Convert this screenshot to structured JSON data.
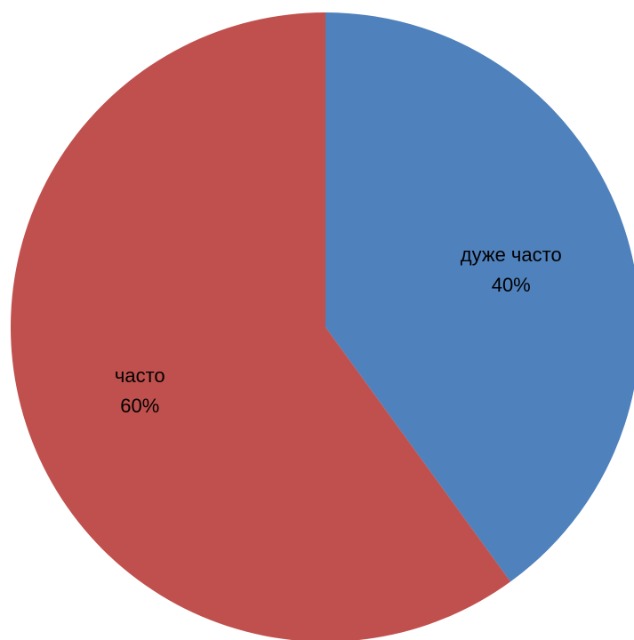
{
  "chart_data": {
    "type": "pie",
    "title": "",
    "slices": [
      {
        "label": "дуже часто",
        "value": 40,
        "value_label": "40%",
        "color": "#4F81BD"
      },
      {
        "label": "часто",
        "value": 60,
        "value_label": "60%",
        "color": "#C0504D"
      }
    ],
    "start_angle": "12 o'clock",
    "direction": "clockwise",
    "legend": "none"
  }
}
